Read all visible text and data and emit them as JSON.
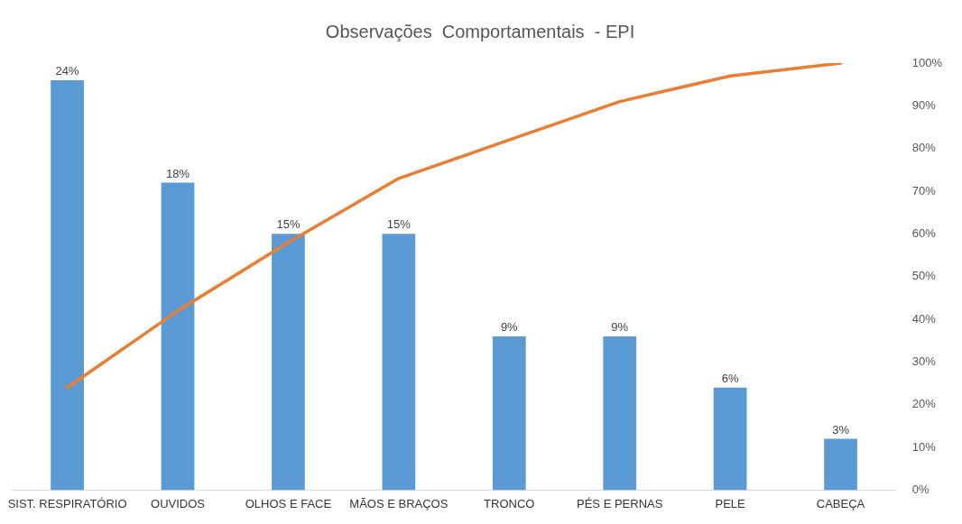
{
  "chart_data": {
    "type": "bar",
    "title": "Observações  Comportamentais  - EPI",
    "categories": [
      "SIST. RESPIRATÓRIO",
      "OUVIDOS",
      "OLHOS E FACE",
      "MÃOS E BRAÇOS",
      "TRONCO",
      "PÉS E PERNAS",
      "PELE",
      "CABEÇA"
    ],
    "series": [
      {
        "color": "#5b9bd5",
        "values": [
          24,
          18,
          15,
          15,
          9,
          9,
          6,
          3
        ],
        "value_labels": [
          "24%",
          "18%",
          "15%",
          "15%",
          "9%",
          "9%",
          "6%",
          "3%"
        ]
      },
      {
        "type": "line",
        "axis": "y2",
        "color": "#ed7d31",
        "values": [
          24,
          42,
          58,
          73,
          82,
          91,
          97,
          100
        ]
      }
    ],
    "y2lim": [
      0,
      100
    ],
    "y2ticks": [
      {
        "value": 0,
        "label": "0%"
      },
      {
        "value": 10,
        "label": "10%"
      },
      {
        "value": 20,
        "label": "20%"
      },
      {
        "value": 30,
        "label": "30%"
      },
      {
        "value": 40,
        "label": "40%"
      },
      {
        "value": 50,
        "label": "50%"
      },
      {
        "value": 60,
        "label": "60%"
      },
      {
        "value": 70,
        "label": "70%"
      },
      {
        "value": 80,
        "label": "80%"
      },
      {
        "value": 90,
        "label": "90%"
      },
      {
        "value": 100,
        "label": "100%"
      }
    ],
    "grid": false,
    "legend": false,
    "marker": "none"
  }
}
